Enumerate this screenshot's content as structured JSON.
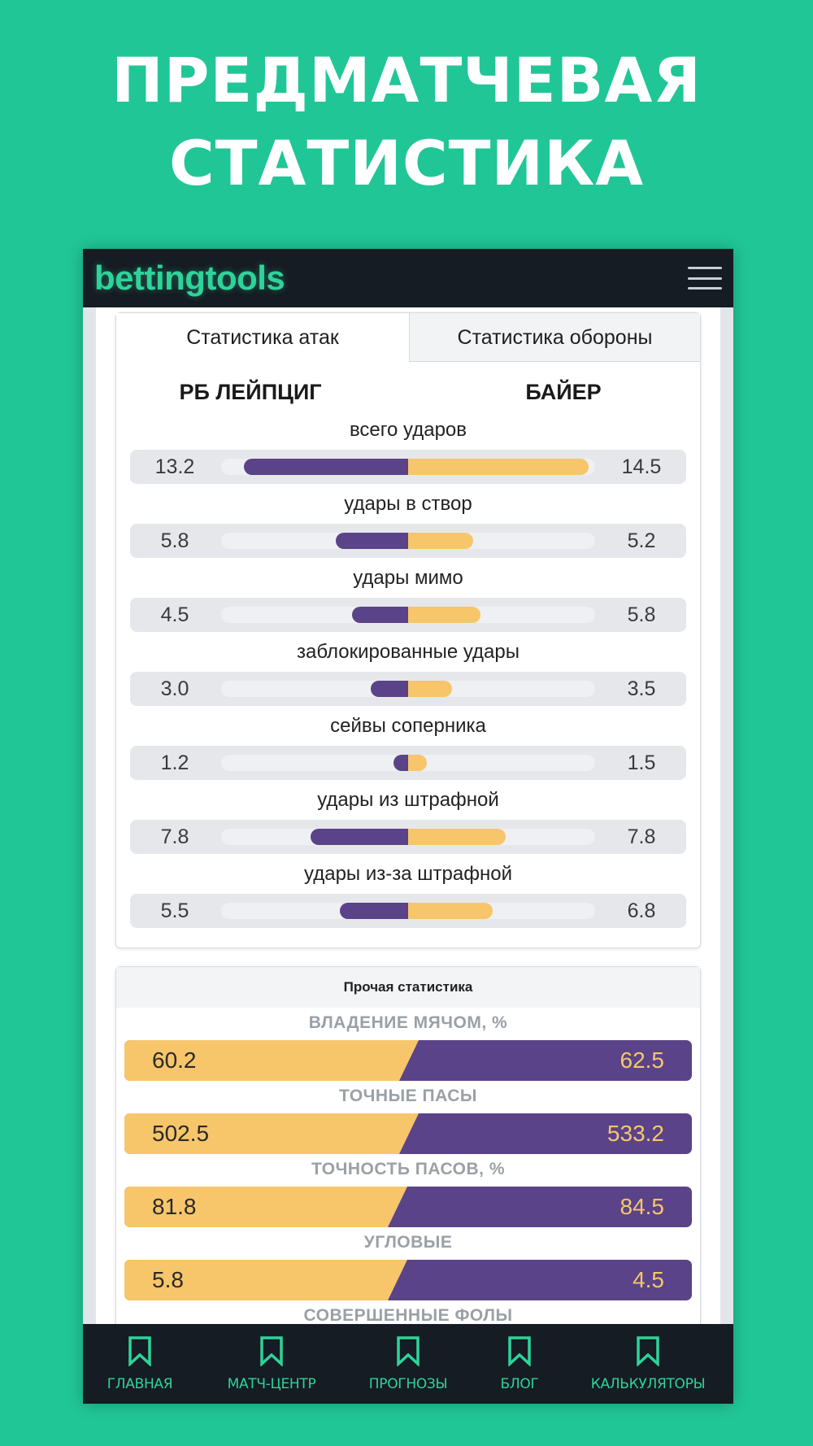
{
  "promo": {
    "line1": "ПРЕДМАТЧЕВАЯ",
    "line2": "СТАТИСТИКА"
  },
  "app": {
    "logo": "bettingtools",
    "menu_icon": "hamburger-menu-icon"
  },
  "tabs": {
    "attack": "Статистика атак",
    "defense": "Статистика обороны"
  },
  "teams": {
    "home": "РБ ЛЕЙПЦИГ",
    "away": "БАЙЕР"
  },
  "attack_stats": [
    {
      "label": "всего ударов",
      "home": "13.2",
      "away": "14.5",
      "home_val": 13.2,
      "away_val": 14.5
    },
    {
      "label": "удары в створ",
      "home": "5.8",
      "away": "5.2",
      "home_val": 5.8,
      "away_val": 5.2
    },
    {
      "label": "удары мимо",
      "home": "4.5",
      "away": "5.8",
      "home_val": 4.5,
      "away_val": 5.8
    },
    {
      "label": "заблокированные удары",
      "home": "3.0",
      "away": "3.5",
      "home_val": 3.0,
      "away_val": 3.5
    },
    {
      "label": "сейвы соперника",
      "home": "1.2",
      "away": "1.5",
      "home_val": 1.2,
      "away_val": 1.5
    },
    {
      "label": "удары из штрафной",
      "home": "7.8",
      "away": "7.8",
      "home_val": 7.8,
      "away_val": 7.8
    },
    {
      "label": "удары из-за штрафной",
      "home": "5.5",
      "away": "6.8",
      "home_val": 5.5,
      "away_val": 6.8
    }
  ],
  "other_stats": {
    "title": "Прочая статистика",
    "items": [
      {
        "label": "ВЛАДЕНИЕ МЯЧОМ, %",
        "home": "60.2",
        "away": "62.5",
        "home_share": 0.5
      },
      {
        "label": "ТОЧНЫЕ ПАСЫ",
        "home": "502.5",
        "away": "533.2",
        "home_share": 0.5
      },
      {
        "label": "ТОЧНОСТЬ ПАСОВ, %",
        "home": "81.8",
        "away": "84.5",
        "home_share": 0.48
      },
      {
        "label": "УГЛОВЫЕ",
        "home": "5.8",
        "away": "4.5",
        "home_share": 0.48
      },
      {
        "label": "СОВЕРШЕННЫЕ ФОЛЫ",
        "home": "",
        "away": "",
        "home_share": 0.5
      }
    ]
  },
  "bottom_nav": [
    {
      "label": "ГЛАВНАЯ",
      "icon": "bookmark-icon"
    },
    {
      "label": "МАТЧ-ЦЕНТР",
      "icon": "bookmark-icon"
    },
    {
      "label": "ПРОГНОЗЫ",
      "icon": "bookmark-icon"
    },
    {
      "label": "БЛОГ",
      "icon": "bookmark-icon"
    },
    {
      "label": "КАЛЬКУЛЯТОРЫ",
      "icon": "bookmark-icon"
    }
  ],
  "colors": {
    "background": "#21c697",
    "brand": "#2fd39a",
    "home_bar": "#5a4388",
    "away_bar": "#f7c66a",
    "dark": "#151c23"
  }
}
